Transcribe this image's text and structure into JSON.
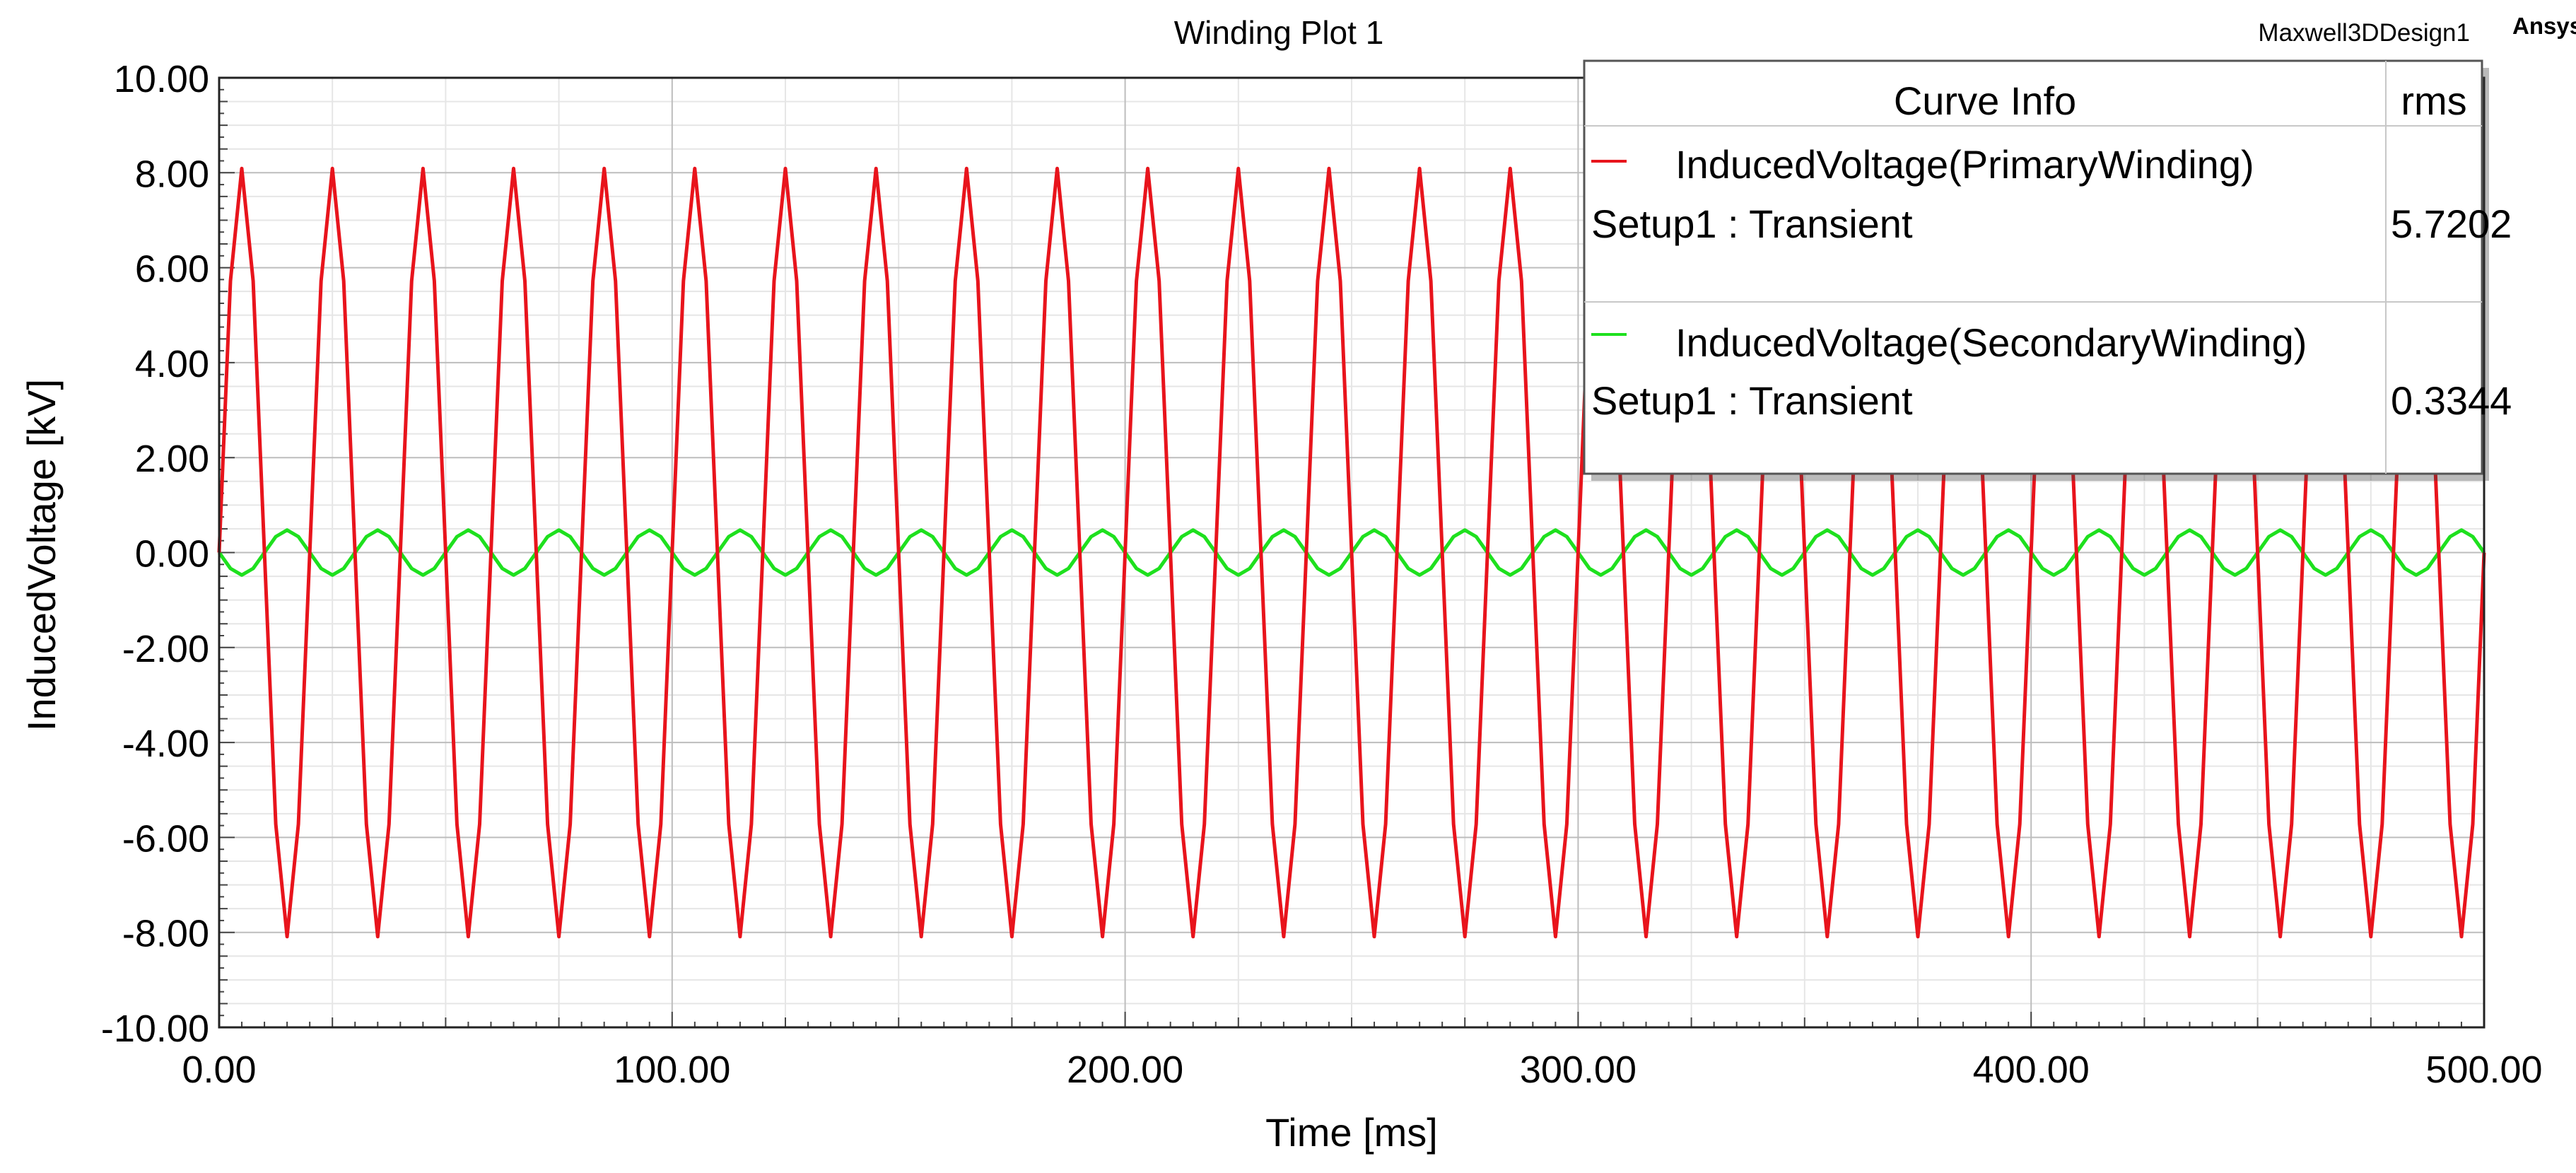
{
  "header": {
    "title": "Winding Plot 1",
    "design_name": "Maxwell3DDesign1",
    "brand": "Ansys"
  },
  "legend": {
    "header_label": "Curve Info",
    "header_stat": "rms",
    "entries": [
      {
        "name": "InducedVoltage(PrimaryWinding)",
        "setup": "Setup1 : Transient",
        "rms": "5.7202",
        "color": "#e8141c"
      },
      {
        "name": "InducedVoltage(SecondaryWinding)",
        "setup": "Setup1 : Transient",
        "rms": "0.3344",
        "color": "#1ee01e"
      }
    ]
  },
  "chart_data": {
    "type": "line",
    "title": "Winding Plot 1",
    "xlabel": "Time [ms]",
    "ylabel": "InducedVoltage [kV]",
    "xlim": [
      0,
      500
    ],
    "ylim": [
      -10,
      10
    ],
    "x_ticks": [
      "0.00",
      "100.00",
      "200.00",
      "300.00",
      "400.00",
      "500.00"
    ],
    "y_ticks": [
      "10.00",
      "8.00",
      "6.00",
      "4.00",
      "2.00",
      "0.00",
      "-2.00",
      "-4.00",
      "-6.00",
      "-8.00",
      "-10.00"
    ],
    "grid": true,
    "legend_position": "top-right",
    "series": [
      {
        "name": "InducedVoltage(PrimaryWinding)",
        "color": "#e8141c",
        "waveform": "sine",
        "frequency_hz": 50,
        "amplitude_kv": 8.09,
        "rms_kv": 5.7202,
        "phase_deg": 0,
        "sample_step_ms": 2.5,
        "x_range_ms": [
          0,
          500
        ]
      },
      {
        "name": "InducedVoltage(SecondaryWinding)",
        "color": "#1ee01e",
        "waveform": "sine",
        "frequency_hz": 50,
        "amplitude_kv": 0.473,
        "rms_kv": 0.3344,
        "phase_deg": 180,
        "sample_step_ms": 2.5,
        "x_range_ms": [
          0,
          500
        ]
      }
    ]
  }
}
